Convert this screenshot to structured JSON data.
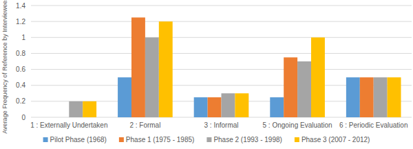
{
  "chart_data": {
    "type": "bar",
    "y_label": "Average Frequency of Reference by Interviewees",
    "categories": [
      "1 : Externally Undertaken",
      "2 : Formal",
      "3 : Informal",
      "5 : Ongoing Evaluation",
      "6 : Periodic Evaluation"
    ],
    "series": [
      {
        "name": "Pilot Phase (1968)",
        "color": "#5b9bd5",
        "values": [
          0,
          0.5,
          0.25,
          0.25,
          0.5
        ]
      },
      {
        "name": "Phase 1 (1975 - 1985)",
        "color": "#ed7d31",
        "values": [
          0,
          1.25,
          0.25,
          0.75,
          0.5
        ]
      },
      {
        "name": "Phase 2 (1993 - 1998)",
        "color": "#a5a5a5",
        "values": [
          0.2,
          1.0,
          0.3,
          0.7,
          0.5
        ]
      },
      {
        "name": "Phase 3 (2007 - 2012)",
        "color": "#ffc000",
        "values": [
          0.2,
          1.2,
          0.3,
          1.0,
          0.5
        ]
      }
    ],
    "ylim": [
      0,
      1.4
    ],
    "yticks": [
      0,
      0.2,
      0.4,
      0.6,
      0.8,
      1,
      1.2,
      1.4
    ],
    "grid": true,
    "legend": "bottom"
  }
}
